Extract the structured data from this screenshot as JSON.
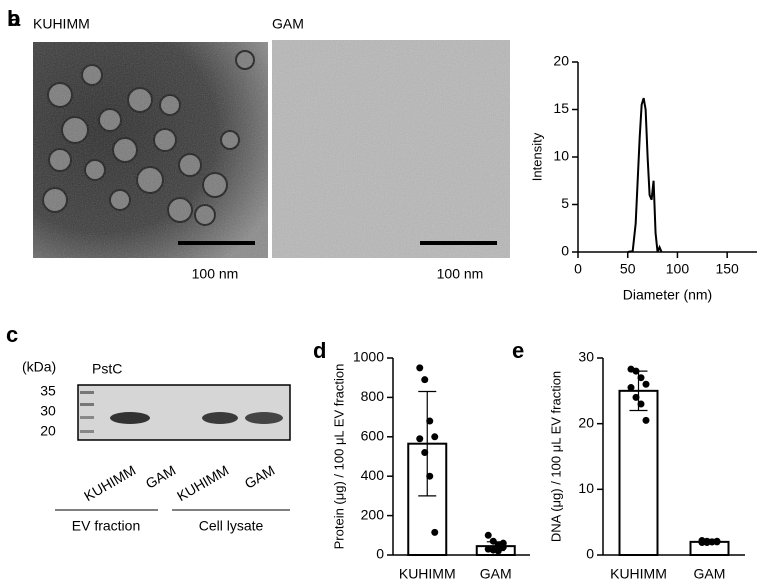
{
  "panels": {
    "a": {
      "label": "a",
      "images": [
        {
          "caption": "KUHIMM",
          "scale": "100 nm"
        },
        {
          "caption": "GAM",
          "scale": "100 nm"
        }
      ]
    },
    "c": {
      "label": "c",
      "unit": "(kDa)",
      "antibody": "PstC",
      "ladder": [
        "35",
        "30",
        "20"
      ],
      "lanes": [
        "KUHIMM",
        "GAM",
        "KUHIMM",
        "GAM"
      ],
      "groups": [
        "EV fraction",
        "Cell lysate"
      ]
    }
  },
  "chart_data": [
    {
      "type": "line",
      "panel_label": "b",
      "x_label": "Diameter (nm)",
      "y_label": "Intensity",
      "x": [
        50,
        55,
        58,
        62,
        64,
        66,
        68,
        70,
        72,
        74,
        76,
        78,
        80,
        82,
        84
      ],
      "values": [
        0,
        0.1,
        3,
        12,
        15.5,
        16.2,
        15,
        10,
        6,
        5.5,
        7.5,
        2,
        0,
        0.5,
        0
      ],
      "color": "#000000",
      "xlim": [
        0,
        180
      ],
      "xticks": [
        0,
        50,
        100,
        150
      ],
      "ylim": [
        0,
        20
      ],
      "yticks": [
        0,
        5,
        10,
        15,
        20
      ]
    },
    {
      "type": "bar",
      "panel_label": "d",
      "y_label": "Protein (μg) / 100 μL EV fraction",
      "categories": [
        "KUHIMM",
        "GAM"
      ],
      "values": [
        565,
        45
      ],
      "errors": [
        265,
        22
      ],
      "points": [
        [
          950,
          890,
          680,
          600,
          590,
          520,
          400,
          115
        ],
        [
          100,
          70,
          50,
          40,
          30,
          25,
          20,
          60
        ]
      ],
      "ylim": [
        0,
        1000
      ],
      "yticks": [
        0,
        200,
        400,
        600,
        800,
        1000
      ]
    },
    {
      "type": "bar",
      "panel_label": "e",
      "y_label": "DNA (μg) / 100 μL EV fraction",
      "categories": [
        "KUHIMM",
        "GAM"
      ],
      "values": [
        25,
        2
      ],
      "errors": [
        3,
        0.2
      ],
      "points": [
        [
          28.3,
          28,
          27,
          26,
          25.5,
          24,
          23,
          20.5
        ],
        [
          2.2,
          2.1,
          2,
          2,
          1.9,
          1.9,
          2,
          2.1
        ]
      ],
      "ylim": [
        0,
        30
      ],
      "yticks": [
        0,
        10,
        20,
        30
      ]
    }
  ]
}
